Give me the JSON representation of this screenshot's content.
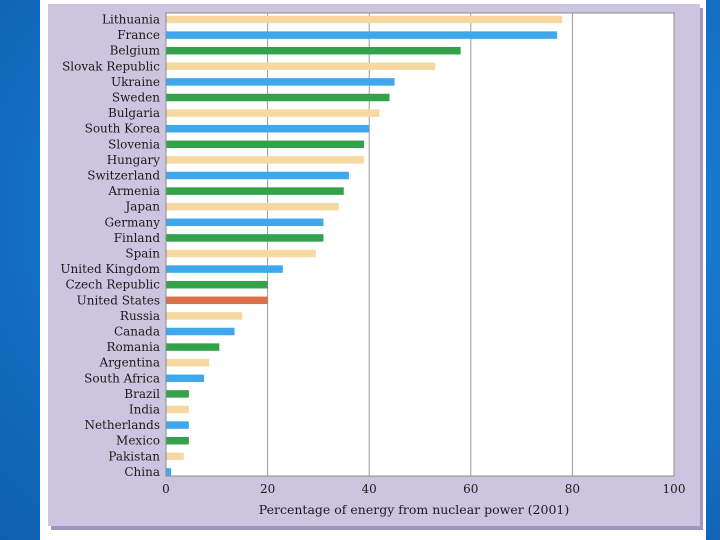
{
  "chart_data": {
    "type": "bar",
    "orientation": "horizontal",
    "title": "",
    "xlabel": "Percentage of energy from nuclear power (2001)",
    "ylabel": "",
    "xlim": [
      0,
      100
    ],
    "xticks": [
      0,
      20,
      40,
      60,
      80,
      100
    ],
    "grid": "vertical",
    "legend": "none",
    "categories": [
      "Lithuania",
      "France",
      "Belgium",
      "Slovak Republic",
      "Ukraine",
      "Sweden",
      "Bulgaria",
      "South Korea",
      "Slovenia",
      "Hungary",
      "Switzerland",
      "Armenia",
      "Japan",
      "Germany",
      "Finland",
      "Spain",
      "United Kingdom",
      "Czech Republic",
      "United States",
      "Russia",
      "Canada",
      "Romania",
      "Argentina",
      "South Africa",
      "Brazil",
      "India",
      "Netherlands",
      "Mexico",
      "Pakistan",
      "China"
    ],
    "values": [
      78,
      77,
      58,
      53,
      45,
      44,
      42,
      40,
      39,
      39,
      36,
      35,
      34,
      31,
      31,
      29.5,
      23,
      20,
      20,
      15,
      13.5,
      10.5,
      8.5,
      7.5,
      4.5,
      4.5,
      4.5,
      4.5,
      3.5,
      1
    ],
    "bar_colors": [
      "#f5d9a0",
      "#3fa8ec",
      "#34a24a",
      "#f5d9a0",
      "#3fa8ec",
      "#34a24a",
      "#f5d9a0",
      "#3fa8ec",
      "#34a24a",
      "#f5d9a0",
      "#3fa8ec",
      "#34a24a",
      "#f5d9a0",
      "#3fa8ec",
      "#34a24a",
      "#f5d9a0",
      "#3fa8ec",
      "#34a24a",
      "#d9714a",
      "#f5d9a0",
      "#3fa8ec",
      "#34a24a",
      "#f5d9a0",
      "#3fa8ec",
      "#34a24a",
      "#f5d9a0",
      "#3fa8ec",
      "#34a24a",
      "#f5d9a0",
      "#3fa8ec"
    ]
  }
}
